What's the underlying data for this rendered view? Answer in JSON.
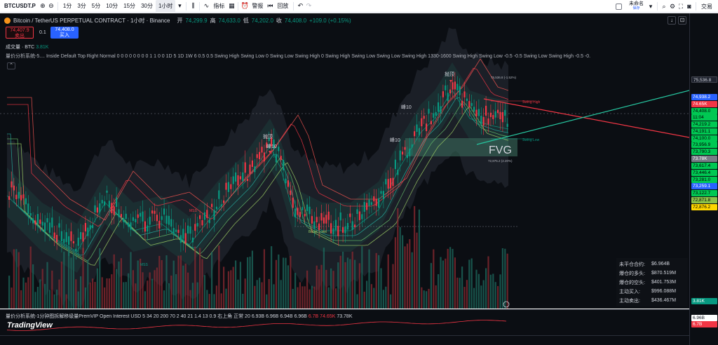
{
  "toolbar": {
    "symbol": "BTCUSDT.P",
    "timeframes": [
      "1分",
      "3分",
      "5分",
      "10分",
      "15分",
      "30分",
      "1小时"
    ],
    "active_timeframe": "1小时",
    "indicators_label": "指标",
    "alert_label": "警报",
    "replay_label": "回放",
    "layout_name": "未命名",
    "layout_status": "保存",
    "trade_label": "交易"
  },
  "legend": {
    "title": "Bitcoin / TetherUS PERPETUAL CONTRACT · 1小时 · Binance",
    "open_label": "开",
    "open": "74,299.9",
    "high_label": "高",
    "high": "74,633.0",
    "low_label": "低",
    "low": "74,202.0",
    "close_label": "收",
    "close": "74,408.0",
    "change": "+109.0 (+0.15%)",
    "sell_price": "74,407.9",
    "sell_label": "卖出",
    "spread": "0.1",
    "buy_price": "74,408.0",
    "buy_label": "买入",
    "volume_label": "成交量 · BTC",
    "volume_value": "3.81K",
    "indicator_line": "量价分析系统-5.... Inside Default Top Right Normal 0 0 0 0 0 0 0 0 1 1 0 0 1D 5 1D 1W 6 0.5 0.5 Swing High Swing Low 0 Swing Low Swing High 0 Swing High Swing Low Swing Low Swing High 1330-1600 Swing High Swing Low -0.5 -0.5 Swing Low Swing High -0.5 -0."
  },
  "chart": {
    "fvg_label": "FVG",
    "annotations": {
      "top_marker": "抛顶",
      "break_1": "峰10",
      "break_2": "峰10",
      "break_3": "峰10",
      "break_4": "抛顶",
      "swing_high": "Swing High",
      "swing_low": "Swing Low",
      "break_low": "Break Lows",
      "mss_1": "MSS",
      "mss_2": "MSS",
      "fib_high": "75,536.8 (-1.52%)",
      "fib_low": "72,875.2 (2.20%)"
    },
    "colors": {
      "up": "#089981",
      "down": "#f23645",
      "background": "#0b0e13"
    }
  },
  "stats": [
    {
      "label": "未平仓合约:",
      "value": "$6.964B"
    },
    {
      "label": "爆仓的多头:",
      "value": "$870.519M"
    },
    {
      "label": "爆仓的空头:",
      "value": "$401.753M"
    },
    {
      "label": "主动买入:",
      "value": "$996.088M"
    },
    {
      "label": "主动卖出:",
      "value": "$436.467M"
    }
  ],
  "oscillator": {
    "legend": "量价分析系统-1分钟图拆解移级量PremVIP Open Interest USD 5 34 20 200 70 2 40 21 1.4 13 0.9 右上角 正常 20",
    "val1": "6.93B",
    "val2": "6.96B",
    "val3": "6.94B",
    "val4": "6.96B",
    "val5": "6.7B",
    "val6": "74.65K",
    "val7": "73.78K",
    "logo": "TradingView"
  },
  "price_axis": [
    {
      "text": "75,536.8",
      "style": "dark",
      "pos": 0.199
    },
    {
      "text": "74,938.2",
      "style": "blue",
      "pos": 0.252
    },
    {
      "text": "74.65K",
      "style": "red",
      "pos": 0.273
    },
    {
      "text": "74,408.0",
      "style": "green",
      "pos": 0.294
    },
    {
      "text": "11:04",
      "style": "green",
      "pos": 0.313
    },
    {
      "text": "74,219.2",
      "style": "green",
      "pos": 0.335
    },
    {
      "text": "74,191.1",
      "style": "green",
      "pos": 0.355
    },
    {
      "text": "74,100.0",
      "style": "green",
      "pos": 0.376
    },
    {
      "text": "73,956.9",
      "style": "green",
      "pos": 0.396
    },
    {
      "text": "73,790.3",
      "style": "green",
      "pos": 0.417
    },
    {
      "text": "73.78K",
      "style": "gray",
      "pos": 0.437
    },
    {
      "text": "73,617.4",
      "style": "green",
      "pos": 0.458
    },
    {
      "text": "73,446.4",
      "style": "green",
      "pos": 0.479
    },
    {
      "text": "73,281.0",
      "style": "green",
      "pos": 0.5
    },
    {
      "text": "73,259.1",
      "style": "blue",
      "pos": 0.521
    },
    {
      "text": "73,122.7",
      "style": "green",
      "pos": 0.542
    },
    {
      "text": "72,871.8",
      "style": "lime",
      "pos": 0.562
    },
    {
      "text": "72,876.2",
      "style": "yellow",
      "pos": 0.583
    },
    {
      "text": "3.81K",
      "style": "teal",
      "pos": 0.866
    },
    {
      "text": "6.96B",
      "style": "white",
      "pos": 0.917
    },
    {
      "text": "6.7B",
      "style": "red",
      "pos": 0.936
    }
  ]
}
